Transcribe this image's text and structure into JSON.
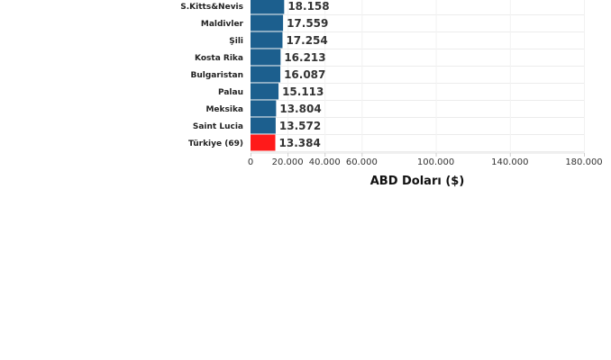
{
  "chart_data": {
    "type": "bar",
    "orientation": "horizontal",
    "categories": [
      "S.Kitts&Nevis",
      "Maldivler",
      "Şili",
      "Kosta Rika",
      "Bulgaristan",
      "Palau",
      "Meksika",
      "Saint Lucia",
      "Türkiye (69)"
    ],
    "values": [
      18158,
      17559,
      17254,
      16213,
      16087,
      15113,
      13804,
      13572,
      13384
    ],
    "value_labels": [
      "18.158",
      "17.559",
      "17.254",
      "16.213",
      "16.087",
      "15.113",
      "13.804",
      "13.572",
      "13.384"
    ],
    "highlight": "Türkiye (69)",
    "xlabel": "ABD Doları ($)",
    "ylabel": "",
    "xlim": [
      0,
      180000
    ],
    "x_ticks": [
      0,
      20000,
      40000,
      60000,
      100000,
      140000,
      180000
    ],
    "x_tick_labels": [
      "0",
      "20.000",
      "40.000",
      "60.000",
      "100.000",
      "140.000",
      "180.000"
    ],
    "grid": true,
    "colors": {
      "bar": "#1c5f8e",
      "highlight": "#ff1a1a"
    }
  }
}
